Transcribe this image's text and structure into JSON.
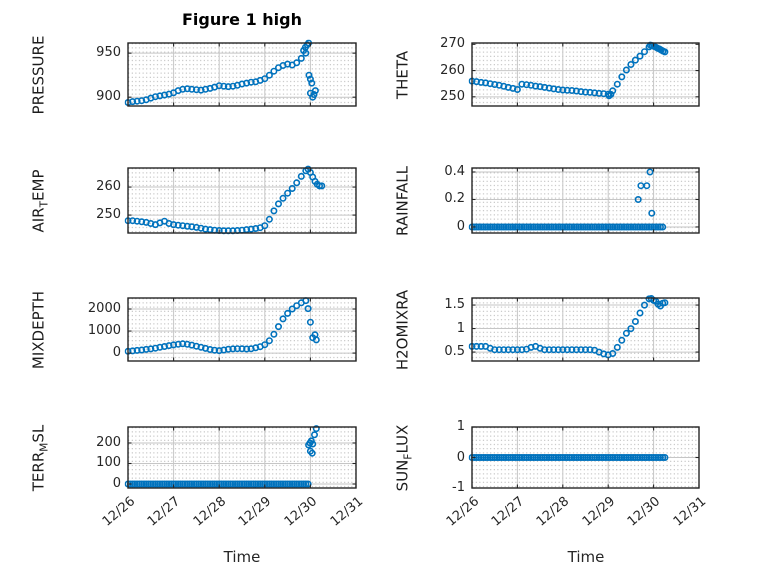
{
  "figure": {
    "title": "Figure 1 high",
    "xlabel": "Time"
  },
  "x_axis": {
    "tick_labels": [
      "12/26",
      "12/27",
      "12/28",
      "12/29",
      "12/30",
      "12/31"
    ],
    "tick_values": [
      0,
      1,
      2,
      3,
      4,
      5
    ],
    "xlim": [
      0,
      5
    ]
  },
  "colors": {
    "marker": "#0072BD",
    "axis": "#262626",
    "grid_major": "#c6c6c6",
    "grid_minor_dot": "#b0b0b0"
  },
  "chart_data": [
    {
      "id": "pressure",
      "type": "scatter",
      "marker": "o",
      "ylabel": {
        "pre": "PRESSURE",
        "sub": "",
        "post": ""
      },
      "yticks": [
        900,
        950
      ],
      "ylim": [
        890,
        961.5
      ],
      "xlim": [
        0,
        5
      ],
      "segments": [
        {
          "kind": "series",
          "x0": 0,
          "dx": 0.1,
          "y": [
            894,
            895,
            895.5,
            896,
            897,
            899,
            900.5,
            901.5,
            902.5,
            903.5,
            905,
            907.5,
            909,
            909.5,
            909,
            908.5,
            908,
            909,
            910,
            911.5,
            913,
            912.5,
            912,
            912.5,
            913.5,
            915,
            916,
            917,
            917.5,
            919,
            921,
            925,
            929.5,
            933.5,
            936,
            937.5,
            936.5,
            939,
            944,
            950
          ]
        },
        {
          "kind": "points",
          "x": [
            3.85,
            3.89,
            3.93,
            3.96
          ],
          "y": [
            953,
            956.5,
            959.5,
            961.5
          ]
        },
        {
          "kind": "points",
          "x": [
            3.97,
            4.0,
            4.03,
            4.0,
            4.05,
            4.08,
            4.11
          ],
          "y": [
            925,
            920.5,
            916,
            904.5,
            900,
            903,
            907.5
          ]
        }
      ]
    },
    {
      "id": "theta",
      "type": "scatter",
      "marker": "o",
      "ylabel": {
        "pre": "THETA",
        "sub": "",
        "post": ""
      },
      "yticks": [
        250,
        260,
        270
      ],
      "ylim": [
        246.5,
        270.5
      ],
      "xlim": [
        0,
        5
      ],
      "segments": [
        {
          "kind": "series",
          "x0": 0,
          "dx": 0.1,
          "y": [
            256,
            255.8,
            255.5,
            255.3,
            255,
            254.7,
            254.4,
            254,
            253.6,
            253.2,
            252.8,
            254.8,
            254.6,
            254.4,
            254.1,
            253.9,
            253.6,
            253.3,
            253,
            252.8,
            252.6,
            252.5,
            252.4,
            252.2,
            252,
            251.8,
            251.7,
            251.5,
            251.3,
            251.2,
            251,
            252.3,
            254.8,
            257.6,
            260.2,
            262.3,
            264,
            265.5,
            267.2,
            269
          ]
        },
        {
          "kind": "points",
          "x": [
            3.02,
            3.06
          ],
          "y": [
            250.4,
            250.9
          ]
        },
        {
          "kind": "points",
          "x": [
            3.93,
            3.97,
            4.01,
            4.05,
            4.09,
            4.13,
            4.17,
            4.21,
            4.25
          ],
          "y": [
            269.7,
            269.5,
            269.2,
            268.9,
            268.5,
            268.2,
            267.8,
            267.4,
            267.1
          ]
        }
      ]
    },
    {
      "id": "air_temp",
      "type": "scatter",
      "marker": "o",
      "ylabel": {
        "pre": "AIR",
        "sub": "T",
        "post": "EMP"
      },
      "yticks": [
        250,
        260
      ],
      "ylim": [
        243.6,
        266.8
      ],
      "xlim": [
        0,
        5
      ],
      "segments": [
        {
          "kind": "series",
          "x0": 0,
          "dx": 0.1,
          "y": [
            248,
            248,
            247.8,
            247.6,
            247.4,
            247,
            246.6,
            247.2,
            247.8,
            247,
            246.6,
            246.4,
            246.2,
            246,
            245.8,
            245.6,
            245.3,
            245,
            244.8,
            244.6,
            244.5,
            244.4,
            244.4,
            244.4,
            244.5,
            244.6,
            244.8,
            245,
            245.2,
            245.5,
            246.2,
            248.5,
            251.5,
            254,
            256,
            257.8,
            259.5,
            261.5,
            263.8,
            265.8
          ]
        },
        {
          "kind": "points",
          "x": [
            3.95,
            4.0,
            4.05,
            4.1,
            4.15,
            4.2,
            4.25
          ],
          "y": [
            266.4,
            265.2,
            263.6,
            262,
            261,
            260.4,
            260.4
          ]
        }
      ]
    },
    {
      "id": "rainfall",
      "type": "scatter",
      "marker": "o",
      "ylabel": {
        "pre": "RAINFALL",
        "sub": "",
        "post": ""
      },
      "yticks": [
        0,
        0.2,
        0.4
      ],
      "ylim": [
        -0.044,
        0.429
      ],
      "xlim": [
        0,
        5
      ],
      "segments": [
        {
          "kind": "const",
          "x0": 0,
          "x1": 4.2,
          "dx": 0.05,
          "y": 0
        },
        {
          "kind": "points",
          "x": [
            3.66,
            3.72,
            3.85,
            3.92,
            3.96
          ],
          "y": [
            0.2,
            0.3,
            0.3,
            0.4,
            0.1
          ]
        }
      ]
    },
    {
      "id": "mixdepth",
      "type": "scatter",
      "marker": "o",
      "ylabel": {
        "pre": "MIXDEPTH",
        "sub": "",
        "post": ""
      },
      "yticks": [
        0,
        1000,
        2000
      ],
      "ylim": [
        -360,
        2500
      ],
      "xlim": [
        0,
        5
      ],
      "segments": [
        {
          "kind": "series",
          "x0": 0,
          "dx": 0.1,
          "y": [
            80,
            100,
            120,
            140,
            165,
            190,
            220,
            260,
            300,
            340,
            370,
            400,
            420,
            400,
            360,
            310,
            260,
            210,
            160,
            130,
            110,
            140,
            170,
            190,
            200,
            195,
            185,
            195,
            240,
            290,
            380,
            560,
            850,
            1200,
            1550,
            1800,
            2000,
            2150,
            2280,
            2380
          ]
        },
        {
          "kind": "points",
          "x": [
            3.95,
            4.0,
            4.05,
            4.1,
            4.13
          ],
          "y": [
            2020,
            1400,
            700,
            830,
            600
          ]
        }
      ]
    },
    {
      "id": "h2omixra",
      "type": "scatter",
      "marker": "o",
      "ylabel": {
        "pre": "H2OMIXRA",
        "sub": "",
        "post": ""
      },
      "yticks": [
        0.5,
        1,
        1.5
      ],
      "ylim": [
        0.31,
        1.65
      ],
      "xlim": [
        0,
        5
      ],
      "segments": [
        {
          "kind": "series",
          "x0": 0,
          "dx": 0.1,
          "y": [
            0.62,
            0.62,
            0.62,
            0.62,
            0.58,
            0.55,
            0.55,
            0.55,
            0.55,
            0.55,
            0.55,
            0.55,
            0.56,
            0.6,
            0.62,
            0.58,
            0.55,
            0.55,
            0.55,
            0.55,
            0.55,
            0.55,
            0.55,
            0.55,
            0.55,
            0.55,
            0.55,
            0.54,
            0.5,
            0.46,
            0.44,
            0.47,
            0.6,
            0.75,
            0.9,
            1.0,
            1.15,
            1.33,
            1.5,
            1.63
          ]
        },
        {
          "kind": "points",
          "x": [
            3.95,
            4.0,
            4.05,
            4.1,
            4.15,
            4.2,
            4.25
          ],
          "y": [
            1.64,
            1.6,
            1.58,
            1.52,
            1.48,
            1.54,
            1.55
          ]
        }
      ]
    },
    {
      "id": "terr_msl",
      "type": "scatter",
      "marker": "o",
      "ylabel": {
        "pre": "TERR",
        "sub": "M",
        "post": "SL"
      },
      "yticks": [
        0,
        100,
        200
      ],
      "ylim": [
        -19.5,
        278
      ],
      "xlim": [
        0,
        5
      ],
      "segments": [
        {
          "kind": "const",
          "x0": 0,
          "x1": 3.93,
          "dx": 0.05,
          "y": 0
        },
        {
          "kind": "points",
          "x": [
            3.96,
            3.99,
            4.0,
            4.02,
            4.04,
            4.05,
            4.09,
            4.13
          ],
          "y": [
            190,
            200,
            160,
            210,
            150,
            195,
            240,
            270
          ]
        }
      ]
    },
    {
      "id": "sun_flux",
      "type": "scatter",
      "marker": "o",
      "ylabel": {
        "pre": "SUN",
        "sub": "F",
        "post": "LUX"
      },
      "yticks": [
        -1,
        0,
        1
      ],
      "ylim": [
        -1,
        1
      ],
      "xlim": [
        0,
        5
      ],
      "segments": [
        {
          "kind": "const",
          "x0": 0,
          "x1": 4.25,
          "dx": 0.05,
          "y": 0
        }
      ]
    }
  ]
}
